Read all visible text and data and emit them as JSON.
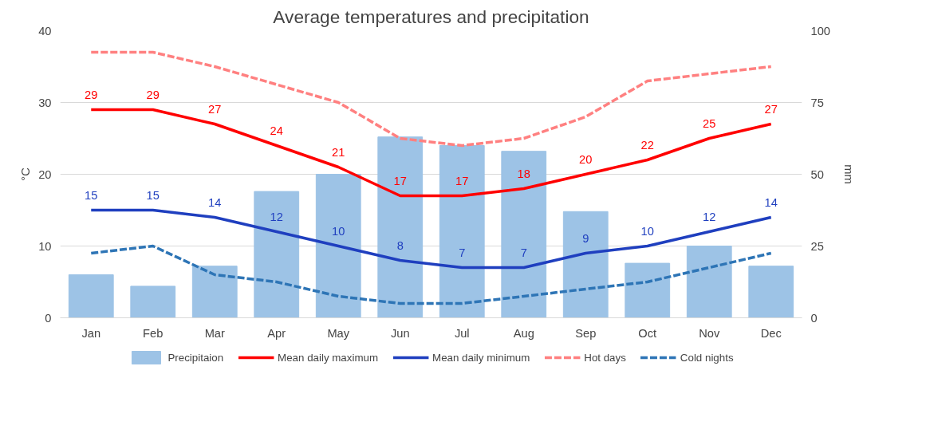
{
  "chart_data": {
    "type": "line",
    "title": "Average temperatures and precipitation",
    "categories": [
      "Jan",
      "Feb",
      "Mar",
      "Apr",
      "May",
      "Jun",
      "Jul",
      "Aug",
      "Sep",
      "Oct",
      "Nov",
      "Dec"
    ],
    "ylabel": "°C",
    "y2label": "mm",
    "ylim": [
      0,
      40
    ],
    "yticks": [
      0,
      10,
      20,
      30,
      40
    ],
    "y2lim": [
      0,
      100
    ],
    "y2ticks": [
      0,
      25,
      50,
      75,
      100
    ],
    "grid": "y",
    "legend": "bottom",
    "series": [
      {
        "name": "Precipitaion",
        "type": "bar",
        "axis": "y2",
        "color": "#9dc3e6",
        "values": [
          15,
          11,
          18,
          44,
          50,
          63,
          60,
          58,
          37,
          19,
          25,
          18
        ]
      },
      {
        "name": "Mean daily maximum",
        "color": "#ff0000",
        "line_style": "solid",
        "values": [
          29,
          29,
          27,
          24,
          21,
          17,
          17,
          18,
          20,
          22,
          25,
          27
        ],
        "value_labels": [
          "29",
          "29",
          "27",
          "24",
          "21",
          "17",
          "17",
          "18",
          "20",
          "22",
          "25",
          "27"
        ]
      },
      {
        "name": "Mean daily minimum",
        "color": "#1f3fbf",
        "line_style": "solid",
        "values": [
          15,
          15,
          14,
          12,
          10,
          8,
          7,
          7,
          9,
          10,
          12,
          14
        ],
        "value_labels": [
          "15",
          "15",
          "14",
          "12",
          "10",
          "8",
          "7",
          "7",
          "9",
          "10",
          "12",
          "14"
        ]
      },
      {
        "name": "Hot days",
        "color": "#ff8080",
        "line_style": "dashed",
        "values": [
          37,
          37,
          35,
          32.5,
          30,
          25,
          24,
          25,
          28,
          33,
          34,
          35
        ]
      },
      {
        "name": "Cold nights",
        "color": "#2e75b6",
        "line_style": "dashed",
        "values": [
          9,
          10,
          6,
          5,
          3,
          2,
          2,
          3,
          4,
          5,
          7,
          9
        ]
      }
    ]
  }
}
